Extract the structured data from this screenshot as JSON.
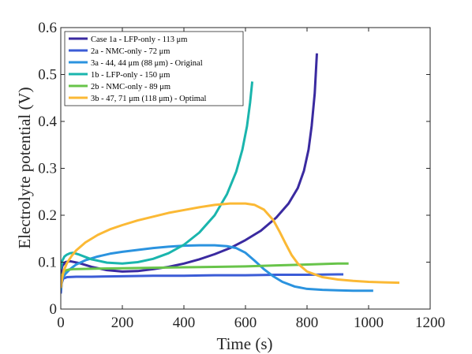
{
  "chart_data": {
    "type": "line",
    "title": "",
    "xlabel": "Time (s)",
    "ylabel": "Electrolyte potential (V)",
    "xlim": [
      0,
      1200
    ],
    "ylim": [
      0,
      0.6
    ],
    "xticks": [
      "0",
      "200",
      "400",
      "600",
      "800",
      "1000",
      "1200"
    ],
    "yticks": [
      "0",
      "0.1",
      "0.2",
      "0.3",
      "0.4",
      "0.5",
      "0.6"
    ],
    "grid": false,
    "legend_position": "top-left",
    "series": [
      {
        "name": "Case 1a - LFP-only - 113 μm",
        "color": "#3a2aa0",
        "x": [
          0,
          5,
          15,
          30,
          60,
          100,
          150,
          200,
          250,
          300,
          350,
          400,
          450,
          500,
          550,
          600,
          650,
          700,
          740,
          770,
          790,
          805,
          815,
          825,
          832
        ],
        "y": [
          0.075,
          0.092,
          0.1,
          0.102,
          0.098,
          0.09,
          0.083,
          0.08,
          0.081,
          0.085,
          0.09,
          0.097,
          0.106,
          0.117,
          0.13,
          0.147,
          0.167,
          0.195,
          0.225,
          0.258,
          0.295,
          0.34,
          0.39,
          0.46,
          0.545
        ]
      },
      {
        "name": "2a - NMC-only - 72 μm",
        "color": "#3b5cd6",
        "x": [
          0,
          3,
          8,
          20,
          50,
          100,
          200,
          300,
          400,
          500,
          600,
          700,
          800,
          900,
          918
        ],
        "y": [
          0.033,
          0.055,
          0.065,
          0.068,
          0.069,
          0.069,
          0.07,
          0.071,
          0.071,
          0.072,
          0.072,
          0.073,
          0.073,
          0.074,
          0.074
        ]
      },
      {
        "name": "3a - 44, 44 μm (88 μm) - Original",
        "color": "#2b93df",
        "x": [
          0,
          5,
          15,
          30,
          50,
          80,
          120,
          160,
          200,
          250,
          300,
          350,
          400,
          450,
          500,
          540,
          570,
          600,
          630,
          660,
          690,
          720,
          760,
          800,
          850,
          900,
          950,
          1000,
          1015
        ],
        "y": [
          0.04,
          0.065,
          0.075,
          0.085,
          0.095,
          0.104,
          0.112,
          0.118,
          0.122,
          0.126,
          0.13,
          0.133,
          0.135,
          0.136,
          0.136,
          0.134,
          0.13,
          0.12,
          0.103,
          0.085,
          0.07,
          0.058,
          0.048,
          0.043,
          0.041,
          0.04,
          0.039,
          0.039,
          0.039
        ]
      },
      {
        "name": "1b - LFP-only - 150 μm",
        "color": "#1ab5ad",
        "x": [
          0,
          5,
          12,
          20,
          30,
          40,
          60,
          100,
          150,
          200,
          250,
          300,
          350,
          400,
          450,
          500,
          540,
          570,
          590,
          605,
          615,
          622
        ],
        "y": [
          0.085,
          0.103,
          0.112,
          0.116,
          0.119,
          0.12,
          0.116,
          0.106,
          0.099,
          0.097,
          0.1,
          0.107,
          0.119,
          0.137,
          0.163,
          0.2,
          0.245,
          0.293,
          0.34,
          0.39,
          0.44,
          0.485
        ]
      },
      {
        "name": "2b - NMC-only - 89 μm",
        "color": "#68c44a",
        "x": [
          0,
          3,
          8,
          15,
          25,
          40,
          100,
          200,
          300,
          400,
          500,
          600,
          700,
          800,
          900,
          935
        ],
        "y": [
          0.045,
          0.068,
          0.078,
          0.082,
          0.084,
          0.085,
          0.086,
          0.087,
          0.088,
          0.089,
          0.09,
          0.091,
          0.093,
          0.095,
          0.097,
          0.097
        ]
      },
      {
        "name": "3b - 47, 71 μm (118 μm) - Optimal",
        "color": "#fbb935",
        "x": [
          0,
          5,
          10,
          20,
          35,
          50,
          80,
          120,
          160,
          200,
          250,
          300,
          350,
          400,
          450,
          500,
          550,
          600,
          630,
          660,
          690,
          710,
          730,
          750,
          770,
          800,
          850,
          900,
          950,
          1000,
          1050,
          1100
        ],
        "y": [
          0.045,
          0.068,
          0.082,
          0.098,
          0.113,
          0.125,
          0.142,
          0.158,
          0.17,
          0.179,
          0.189,
          0.197,
          0.205,
          0.211,
          0.217,
          0.222,
          0.225,
          0.225,
          0.222,
          0.212,
          0.19,
          0.166,
          0.14,
          0.115,
          0.097,
          0.08,
          0.068,
          0.063,
          0.06,
          0.058,
          0.057,
          0.056
        ]
      }
    ]
  }
}
